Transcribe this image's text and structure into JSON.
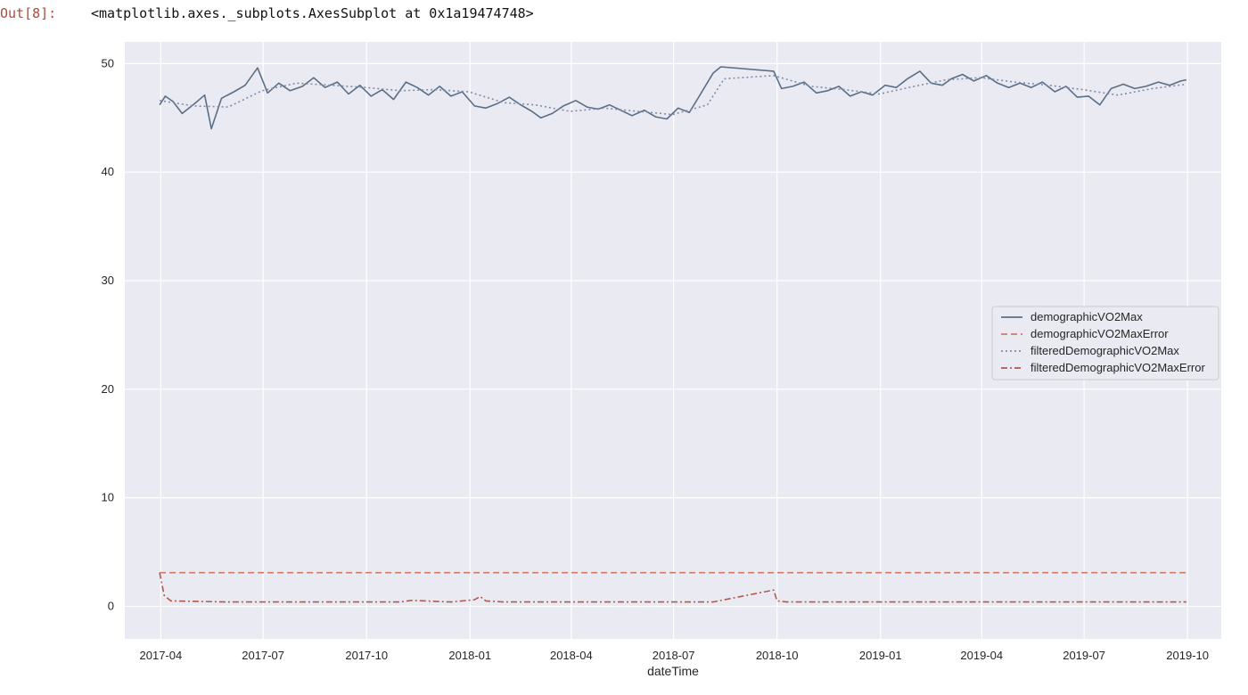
{
  "cell": {
    "prompt": "Out[8]:",
    "repr": "<matplotlib.axes._subplots.AxesSubplot at 0x1a19474748>"
  },
  "chart_data": {
    "type": "line",
    "xlabel": "dateTime",
    "ylabel": "",
    "ylim": [
      -3,
      52
    ],
    "xlim": [
      "2017-02-28",
      "2019-10-31"
    ],
    "grid": true,
    "legend_position": "center-right",
    "xticks": [
      "2017-04",
      "2017-07",
      "2017-10",
      "2018-01",
      "2018-04",
      "2018-07",
      "2018-10",
      "2019-01",
      "2019-04",
      "2019-07",
      "2019-10"
    ],
    "yticks": [
      0,
      10,
      20,
      30,
      40,
      50
    ],
    "series": [
      {
        "name": "demographicVO2Max",
        "color": "#5a6f85",
        "style": "solid",
        "x": [
          "2017-03-31",
          "2017-04-05",
          "2017-04-12",
          "2017-04-20",
          "2017-05-01",
          "2017-05-10",
          "2017-05-16",
          "2017-05-25",
          "2017-06-05",
          "2017-06-15",
          "2017-06-26",
          "2017-07-05",
          "2017-07-15",
          "2017-07-25",
          "2017-08-05",
          "2017-08-15",
          "2017-08-25",
          "2017-09-05",
          "2017-09-15",
          "2017-09-25",
          "2017-10-05",
          "2017-10-15",
          "2017-10-25",
          "2017-11-05",
          "2017-11-15",
          "2017-11-25",
          "2017-12-05",
          "2017-12-15",
          "2017-12-25",
          "2018-01-05",
          "2018-01-15",
          "2018-01-25",
          "2018-02-05",
          "2018-02-15",
          "2018-02-25",
          "2018-03-05",
          "2018-03-15",
          "2018-03-25",
          "2018-04-05",
          "2018-04-15",
          "2018-04-25",
          "2018-05-05",
          "2018-05-15",
          "2018-05-25",
          "2018-06-05",
          "2018-06-15",
          "2018-06-25",
          "2018-07-05",
          "2018-07-15",
          "2018-07-25",
          "2018-08-05",
          "2018-08-12",
          "2018-09-28",
          "2018-10-05",
          "2018-10-15",
          "2018-10-25",
          "2018-11-05",
          "2018-11-15",
          "2018-11-25",
          "2018-12-05",
          "2018-12-15",
          "2018-12-25",
          "2019-01-05",
          "2019-01-15",
          "2019-01-25",
          "2019-02-05",
          "2019-02-15",
          "2019-02-25",
          "2019-03-05",
          "2019-03-15",
          "2019-03-25",
          "2019-04-05",
          "2019-04-15",
          "2019-04-25",
          "2019-05-05",
          "2019-05-15",
          "2019-05-25",
          "2019-06-05",
          "2019-06-15",
          "2019-06-25",
          "2019-07-05",
          "2019-07-15",
          "2019-07-25",
          "2019-08-05",
          "2019-08-15",
          "2019-08-25",
          "2019-09-05",
          "2019-09-15",
          "2019-09-25",
          "2019-09-30"
        ],
        "values": [
          46.2,
          47.0,
          46.5,
          45.4,
          46.3,
          47.1,
          44.0,
          46.8,
          47.4,
          48.0,
          49.6,
          47.3,
          48.2,
          47.5,
          47.9,
          48.7,
          47.8,
          48.3,
          47.2,
          48.0,
          47.0,
          47.6,
          46.7,
          48.3,
          47.8,
          47.1,
          47.9,
          47.0,
          47.4,
          46.1,
          45.9,
          46.3,
          46.9,
          46.2,
          45.6,
          45.0,
          45.4,
          46.1,
          46.6,
          46.0,
          45.8,
          46.2,
          45.7,
          45.2,
          45.7,
          45.1,
          44.9,
          45.9,
          45.5,
          47.2,
          49.1,
          49.7,
          49.3,
          47.7,
          47.9,
          48.3,
          47.3,
          47.5,
          47.9,
          47.0,
          47.4,
          47.1,
          48.0,
          47.8,
          48.6,
          49.3,
          48.2,
          48.0,
          48.6,
          49.0,
          48.4,
          48.9,
          48.2,
          47.8,
          48.2,
          47.8,
          48.3,
          47.4,
          47.9,
          46.9,
          47.0,
          46.2,
          47.7,
          48.1,
          47.7,
          47.9,
          48.3,
          48.0,
          48.4,
          48.5
        ]
      },
      {
        "name": "demographicVO2MaxError",
        "color": "#d17a63",
        "style": "dashed",
        "x": [
          "2017-03-31",
          "2019-09-30"
        ],
        "values": [
          3.1,
          3.1
        ]
      },
      {
        "name": "filteredDemographicVO2Max",
        "color": "#7f8cab",
        "style": "dotted",
        "x": [
          "2017-03-31",
          "2017-04-30",
          "2017-05-31",
          "2017-06-30",
          "2017-07-31",
          "2017-08-31",
          "2017-09-30",
          "2017-10-31",
          "2017-11-30",
          "2017-12-31",
          "2018-01-31",
          "2018-02-28",
          "2018-03-31",
          "2018-04-30",
          "2018-05-31",
          "2018-06-30",
          "2018-07-31",
          "2018-08-15",
          "2018-09-28",
          "2018-10-31",
          "2018-11-30",
          "2018-12-31",
          "2019-01-31",
          "2019-02-28",
          "2019-03-31",
          "2019-04-30",
          "2019-05-31",
          "2019-06-30",
          "2019-07-31",
          "2019-08-31",
          "2019-09-30"
        ],
        "values": [
          46.6,
          46.1,
          46.0,
          47.5,
          48.2,
          48.0,
          47.8,
          47.5,
          47.6,
          47.4,
          46.4,
          46.2,
          45.6,
          45.9,
          45.6,
          45.3,
          46.2,
          48.6,
          48.9,
          47.9,
          47.6,
          47.2,
          47.9,
          48.5,
          48.7,
          48.3,
          48.0,
          47.6,
          47.1,
          47.7,
          48.1
        ]
      },
      {
        "name": "filteredDemographicVO2MaxError",
        "color": "#b05a4d",
        "style": "dashdot",
        "x": [
          "2017-03-31",
          "2017-04-04",
          "2017-04-10",
          "2017-06-01",
          "2017-10-31",
          "2017-11-10",
          "2017-12-15",
          "2018-01-05",
          "2018-01-10",
          "2018-01-15",
          "2018-02-01",
          "2018-06-30",
          "2018-08-05",
          "2018-09-28",
          "2018-10-01",
          "2018-10-10",
          "2019-09-30"
        ],
        "values": [
          3.1,
          1.0,
          0.5,
          0.4,
          0.4,
          0.55,
          0.4,
          0.6,
          0.9,
          0.5,
          0.4,
          0.4,
          0.4,
          1.5,
          0.5,
          0.4,
          0.4
        ]
      }
    ]
  }
}
